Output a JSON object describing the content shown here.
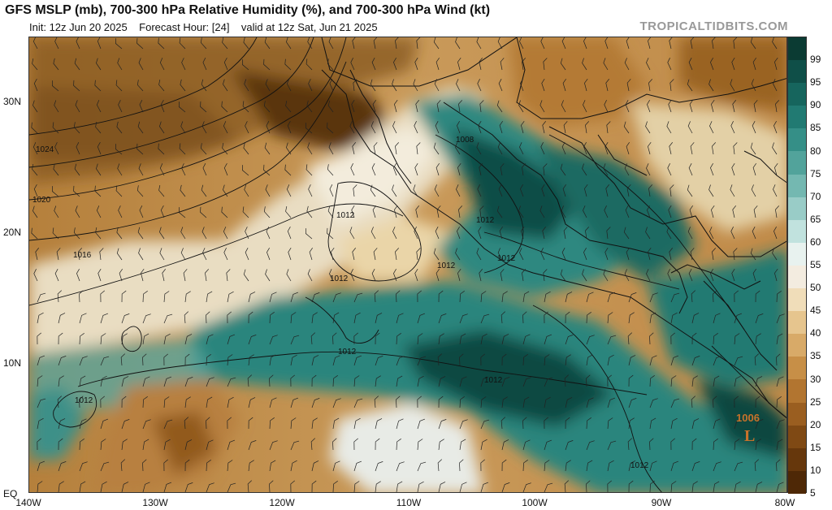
{
  "header": {
    "title": "GFS MSLP (mb), 700-300 hPa Relative Humidity (%), and 700-300 hPa Wind (kt)",
    "init": "Init: 12z Jun 20 2025",
    "forecast_hour": "Forecast Hour: [24]",
    "valid": "valid at 12z Sat, Jun 21 2025",
    "brand": "TROPICALTIDBITS.COM"
  },
  "axes": {
    "lat_labels": [
      "30N",
      "20N",
      "10N",
      "EQ"
    ],
    "lon_labels": [
      "140W",
      "130W",
      "120W",
      "110W",
      "100W",
      "90W",
      "80W"
    ]
  },
  "colorbar": {
    "labels": [
      "99",
      "95",
      "90",
      "85",
      "80",
      "75",
      "70",
      "65",
      "60",
      "55",
      "50",
      "45",
      "40",
      "35",
      "30",
      "25",
      "20",
      "15",
      "10",
      "5"
    ],
    "colors": [
      "#0b3b33",
      "#0f4f48",
      "#16655d",
      "#217a72",
      "#358f87",
      "#52a39b",
      "#74b8b1",
      "#99ccc7",
      "#c1e2de",
      "#e8f2ef",
      "#f3ece0",
      "#f0ddb9",
      "#e6c58e",
      "#d8aa68",
      "#c78f47",
      "#b27530",
      "#9a5e20",
      "#7f4914",
      "#66370c",
      "#4e2806"
    ]
  },
  "isobars": [
    "1024",
    "1020",
    "1016",
    "1012",
    "1012",
    "1012",
    "1012",
    "1012",
    "1012",
    "1012",
    "1008",
    "1012",
    "1012"
  ],
  "low": {
    "pressure": "1006",
    "symbol": "L",
    "color": "#c8722a"
  }
}
